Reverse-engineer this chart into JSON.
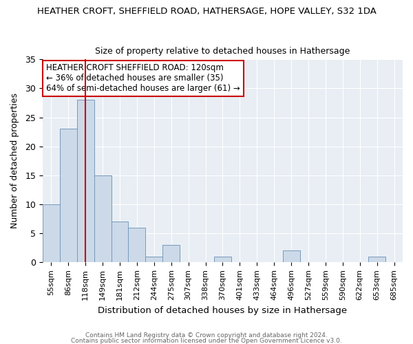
{
  "title": "HEATHER CROFT, SHEFFIELD ROAD, HATHERSAGE, HOPE VALLEY, S32 1DA",
  "subtitle": "Size of property relative to detached houses in Hathersage",
  "xlabel": "Distribution of detached houses by size in Hathersage",
  "ylabel": "Number of detached properties",
  "bin_labels": [
    "55sqm",
    "86sqm",
    "118sqm",
    "149sqm",
    "181sqm",
    "212sqm",
    "244sqm",
    "275sqm",
    "307sqm",
    "338sqm",
    "370sqm",
    "401sqm",
    "433sqm",
    "464sqm",
    "496sqm",
    "527sqm",
    "559sqm",
    "590sqm",
    "622sqm",
    "653sqm",
    "685sqm"
  ],
  "bar_heights": [
    10,
    23,
    28,
    15,
    7,
    6,
    1,
    3,
    0,
    0,
    1,
    0,
    0,
    0,
    2,
    0,
    0,
    0,
    0,
    1,
    0
  ],
  "bar_color": "#ccd9e8",
  "bar_edgecolor": "#7799bb",
  "vline_x": 2,
  "vline_color": "#cc0000",
  "ylim": [
    0,
    35
  ],
  "yticks": [
    0,
    5,
    10,
    15,
    20,
    25,
    30,
    35
  ],
  "annotation_title": "HEATHER CROFT SHEFFIELD ROAD: 120sqm",
  "annotation_line2": "← 36% of detached houses are smaller (35)",
  "annotation_line3": "64% of semi-detached houses are larger (61) →",
  "annotation_box_color": "#ffffff",
  "annotation_box_edgecolor": "#cc0000",
  "footer1": "Contains HM Land Registry data © Crown copyright and database right 2024.",
  "footer2": "Contains public sector information licensed under the Open Government Licence v3.0.",
  "bg_color": "#e8eef4"
}
